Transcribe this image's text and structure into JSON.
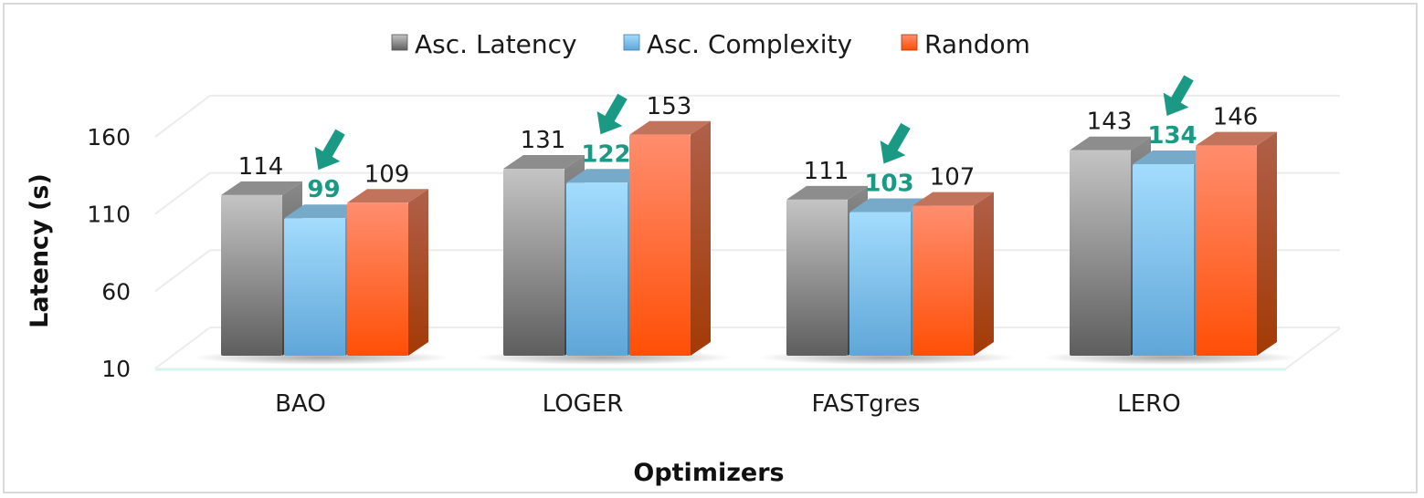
{
  "chart_data": {
    "type": "bar",
    "style": "3d-clustered-column",
    "title": "",
    "xlabel": "Optimizers",
    "ylabel": "Latency (s)",
    "ylim": [
      10,
      160
    ],
    "yticks": [
      10,
      60,
      110,
      160
    ],
    "grid": true,
    "legend_position": "top",
    "categories": [
      "BAO",
      "LOGER",
      "FASTgres",
      "LERO"
    ],
    "series": [
      {
        "name": "Asc. Latency",
        "color": "#9e9e9e",
        "values": [
          114,
          131,
          111,
          143
        ]
      },
      {
        "name": "Asc. Complexity",
        "color": "#7cc4ef",
        "values": [
          99,
          122,
          103,
          134
        ]
      },
      {
        "name": "Random",
        "color": "#ff6a33",
        "values": [
          109,
          153,
          107,
          146
        ]
      }
    ],
    "annotations": [
      {
        "type": "arrow",
        "target_series": "Asc. Complexity",
        "category": "BAO",
        "color": "#1a9985",
        "label": "99"
      },
      {
        "type": "arrow",
        "target_series": "Asc. Complexity",
        "category": "LOGER",
        "color": "#1a9985",
        "label": "122"
      },
      {
        "type": "arrow",
        "target_series": "Asc. Complexity",
        "category": "FASTgres",
        "color": "#1a9985",
        "label": "103"
      },
      {
        "type": "arrow",
        "target_series": "Asc. Complexity",
        "category": "LERO",
        "color": "#1a9985",
        "label": "134"
      }
    ]
  },
  "legend": {
    "items": [
      {
        "label": "Asc. Latency",
        "icon": "gray-cube-swatch"
      },
      {
        "label": "Asc. Complexity",
        "icon": "blue-cube-swatch"
      },
      {
        "label": "Random",
        "icon": "orange-cube-swatch"
      }
    ]
  },
  "axes": {
    "y_title": "Latency (s)",
    "x_title": "Optimizers",
    "y_tick_labels": [
      "160",
      "110",
      "60",
      "10"
    ],
    "x_tick_labels": [
      "BAO",
      "LOGER",
      "FASTgres",
      "LERO"
    ]
  },
  "colors": {
    "highlight": "#1a9985",
    "label_text": "#1a1a1a",
    "grid": "#ececec",
    "floor_line": "#d6f3ee"
  }
}
